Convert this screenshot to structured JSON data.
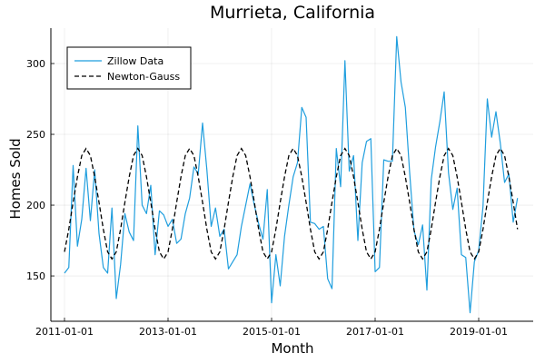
{
  "chart_data": {
    "type": "line",
    "title": "Murrieta, California",
    "xlabel": "Month",
    "ylabel": "Homes Sold",
    "xlim": [
      "2011-01-01",
      "2020-01-01"
    ],
    "ylim": [
      118,
      325
    ],
    "x_ticks": [
      "2011-01-01",
      "2013-01-01",
      "2015-01-01",
      "2017-01-01",
      "2019-01-01"
    ],
    "y_ticks": [
      150,
      200,
      250,
      300
    ],
    "grid": true,
    "legend_position": "top-left",
    "colors": {
      "zillow": "#1f9ede",
      "newton": "#000000"
    },
    "series": [
      {
        "name": "Zillow Data",
        "style": "solid",
        "x": [
          "2011-01-01",
          "2011-02-01",
          "2011-03-01",
          "2011-04-01",
          "2011-05-01",
          "2011-06-01",
          "2011-07-01",
          "2011-08-01",
          "2011-09-01",
          "2011-10-01",
          "2011-11-01",
          "2011-12-01",
          "2012-01-01",
          "2012-02-01",
          "2012-03-01",
          "2012-04-01",
          "2012-05-01",
          "2012-06-01",
          "2012-07-01",
          "2012-08-01",
          "2012-09-01",
          "2012-10-01",
          "2012-11-01",
          "2012-12-01",
          "2013-01-01",
          "2013-02-01",
          "2013-03-01",
          "2013-04-01",
          "2013-05-01",
          "2013-06-01",
          "2013-07-01",
          "2013-08-01",
          "2013-09-01",
          "2013-10-01",
          "2013-11-01",
          "2013-12-01",
          "2014-01-01",
          "2014-02-01",
          "2014-03-01",
          "2014-04-01",
          "2014-05-01",
          "2014-06-01",
          "2014-07-01",
          "2014-08-01",
          "2014-09-01",
          "2014-10-01",
          "2014-11-01",
          "2014-12-01",
          "2015-01-01",
          "2015-02-01",
          "2015-03-01",
          "2015-04-01",
          "2015-05-01",
          "2015-06-01",
          "2015-07-01",
          "2015-08-01",
          "2015-09-01",
          "2015-10-01",
          "2015-11-01",
          "2015-12-01",
          "2016-01-01",
          "2016-02-01",
          "2016-03-01",
          "2016-04-01",
          "2016-05-01",
          "2016-06-01",
          "2016-07-01",
          "2016-08-01",
          "2016-09-01",
          "2016-10-01",
          "2016-11-01",
          "2016-12-01",
          "2017-01-01",
          "2017-02-01",
          "2017-03-01",
          "2017-04-01",
          "2017-05-01",
          "2017-06-01",
          "2017-07-01",
          "2017-08-01",
          "2017-09-01",
          "2017-10-01",
          "2017-11-01",
          "2017-12-01",
          "2018-01-01",
          "2018-02-01",
          "2018-03-01",
          "2018-04-01",
          "2018-05-01",
          "2018-06-01",
          "2018-07-01",
          "2018-08-01",
          "2018-09-01",
          "2018-10-01",
          "2018-11-01",
          "2018-12-01",
          "2019-01-01",
          "2019-02-01",
          "2019-03-01",
          "2019-04-01",
          "2019-05-01",
          "2019-06-01",
          "2019-07-01",
          "2019-08-01",
          "2019-09-01",
          "2019-10-01"
        ],
        "values": [
          152,
          156,
          228,
          171,
          190,
          226,
          189,
          225,
          180,
          156,
          152,
          198,
          134,
          158,
          194,
          181,
          175,
          256,
          200,
          194,
          214,
          165,
          196,
          193,
          185,
          190,
          173,
          176,
          194,
          205,
          227,
          222,
          258,
          225,
          185,
          198,
          178,
          183,
          155,
          160,
          165,
          185,
          200,
          215,
          200,
          187,
          176,
          211,
          131,
          165,
          143,
          178,
          200,
          220,
          230,
          269,
          262,
          188,
          187,
          183,
          185,
          148,
          141,
          240,
          213,
          302,
          224,
          235,
          175,
          230,
          245,
          247,
          153,
          156,
          232,
          231,
          231,
          319,
          287,
          269,
          223,
          182,
          172,
          186,
          140,
          218,
          241,
          259,
          280,
          223,
          197,
          212,
          165,
          163,
          124,
          160,
          168,
          199,
          275,
          248,
          266,
          244,
          216,
          222,
          188,
          205
        ]
      },
      {
        "name": "Newton-Gauss",
        "style": "dashed",
        "x_start": "2011-01-01",
        "values": [
          167,
          183,
          202,
          220,
          235,
          240,
          235,
          220,
          202,
          183,
          167,
          162,
          167,
          183,
          202,
          220,
          235,
          240,
          235,
          220,
          202,
          183,
          167,
          162,
          167,
          183,
          202,
          220,
          235,
          240,
          235,
          220,
          202,
          183,
          167,
          162,
          167,
          183,
          202,
          220,
          235,
          240,
          235,
          220,
          202,
          183,
          167,
          162,
          167,
          183,
          202,
          220,
          235,
          240,
          235,
          220,
          202,
          183,
          167,
          162,
          167,
          183,
          202,
          220,
          235,
          240,
          235,
          220,
          202,
          183,
          167,
          162,
          167,
          183,
          202,
          220,
          235,
          240,
          235,
          220,
          202,
          183,
          167,
          162,
          167,
          183,
          202,
          220,
          235,
          240,
          235,
          220,
          202,
          183,
          167,
          162,
          167,
          183,
          202,
          220,
          235,
          240,
          235,
          220,
          202,
          183
        ]
      }
    ]
  }
}
